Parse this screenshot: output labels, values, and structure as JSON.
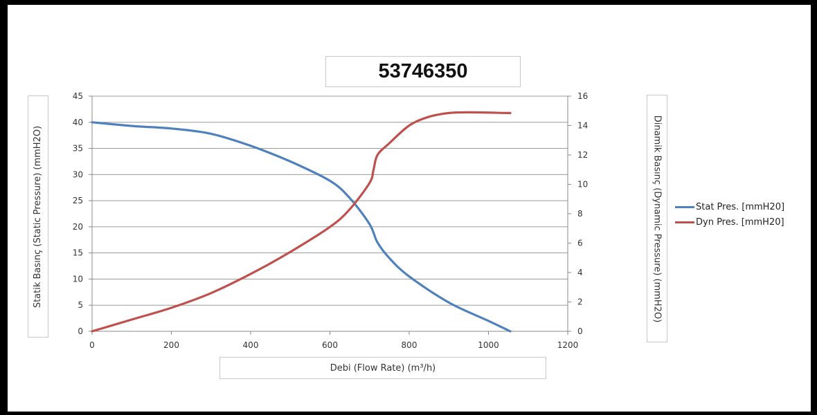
{
  "chart_data": {
    "type": "line",
    "title": "53746350",
    "xlabel": "Debi (Flow Rate) (m³/h)",
    "ylabel": "Statik Basınç (Static Pressure) (mmH2O)",
    "y2label": "Dinamik Basınç (Dynamic Pressure) (mmH2O)",
    "xlim": [
      0,
      1200
    ],
    "ylim": [
      0,
      45
    ],
    "y2lim": [
      0,
      16
    ],
    "xticks": [
      "0",
      "200",
      "400",
      "600",
      "800",
      "1000",
      "1200"
    ],
    "yticks": [
      "0",
      "5",
      "10",
      "15",
      "20",
      "25",
      "30",
      "35",
      "40",
      "45"
    ],
    "y2ticks": [
      "0",
      "2",
      "4",
      "6",
      "8",
      "10",
      "12",
      "14",
      "16"
    ],
    "grid": "horizontal",
    "legend_position": "right",
    "series": [
      {
        "name": "Stat Pres. [mmH20]",
        "axis": "left",
        "color": "#4f81bd",
        "x": [
          0,
          100,
          200,
          300,
          400,
          500,
          600,
          650,
          700,
          720,
          750,
          800,
          900,
          1000,
          1055
        ],
        "y": [
          40,
          39.3,
          38.8,
          37.8,
          35.5,
          32.5,
          28.8,
          25.5,
          20.5,
          17,
          14,
          10.5,
          5.5,
          2,
          0
        ]
      },
      {
        "name": "Dyn Pres. [mmH20]",
        "axis": "right",
        "color": "#c0504d",
        "x": [
          0,
          100,
          200,
          300,
          400,
          500,
          600,
          650,
          700,
          710,
          720,
          750,
          800,
          850,
          900,
          950,
          1055
        ],
        "y": [
          0,
          0.8,
          1.6,
          2.6,
          3.9,
          5.4,
          7.1,
          8.3,
          10.1,
          11,
          12,
          12.8,
          14,
          14.6,
          14.85,
          14.9,
          14.85
        ]
      }
    ]
  }
}
